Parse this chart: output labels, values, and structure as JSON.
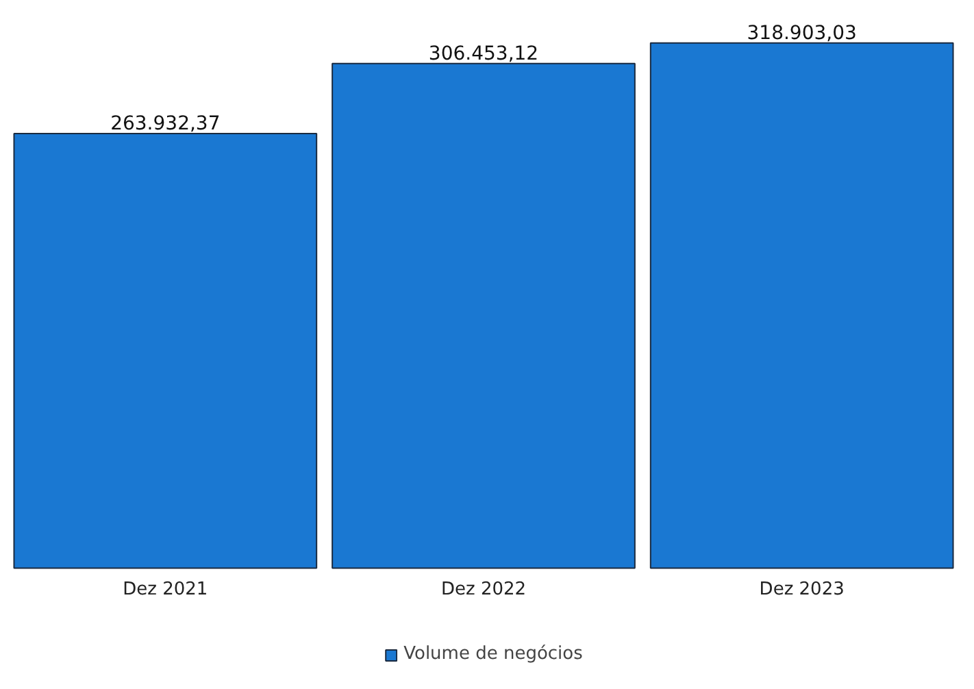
{
  "chart_data": {
    "type": "bar",
    "categories": [
      "Dez 2021",
      "Dez 2022",
      "Dez 2023"
    ],
    "series": [
      {
        "name": "Volume de negócios",
        "color": "#1a78d2",
        "values": [
          263932.37,
          306453.12,
          318903.03
        ],
        "value_labels": [
          "263.932,37",
          "306.453,12",
          "318.903,03"
        ]
      }
    ],
    "legend": "bottom"
  }
}
